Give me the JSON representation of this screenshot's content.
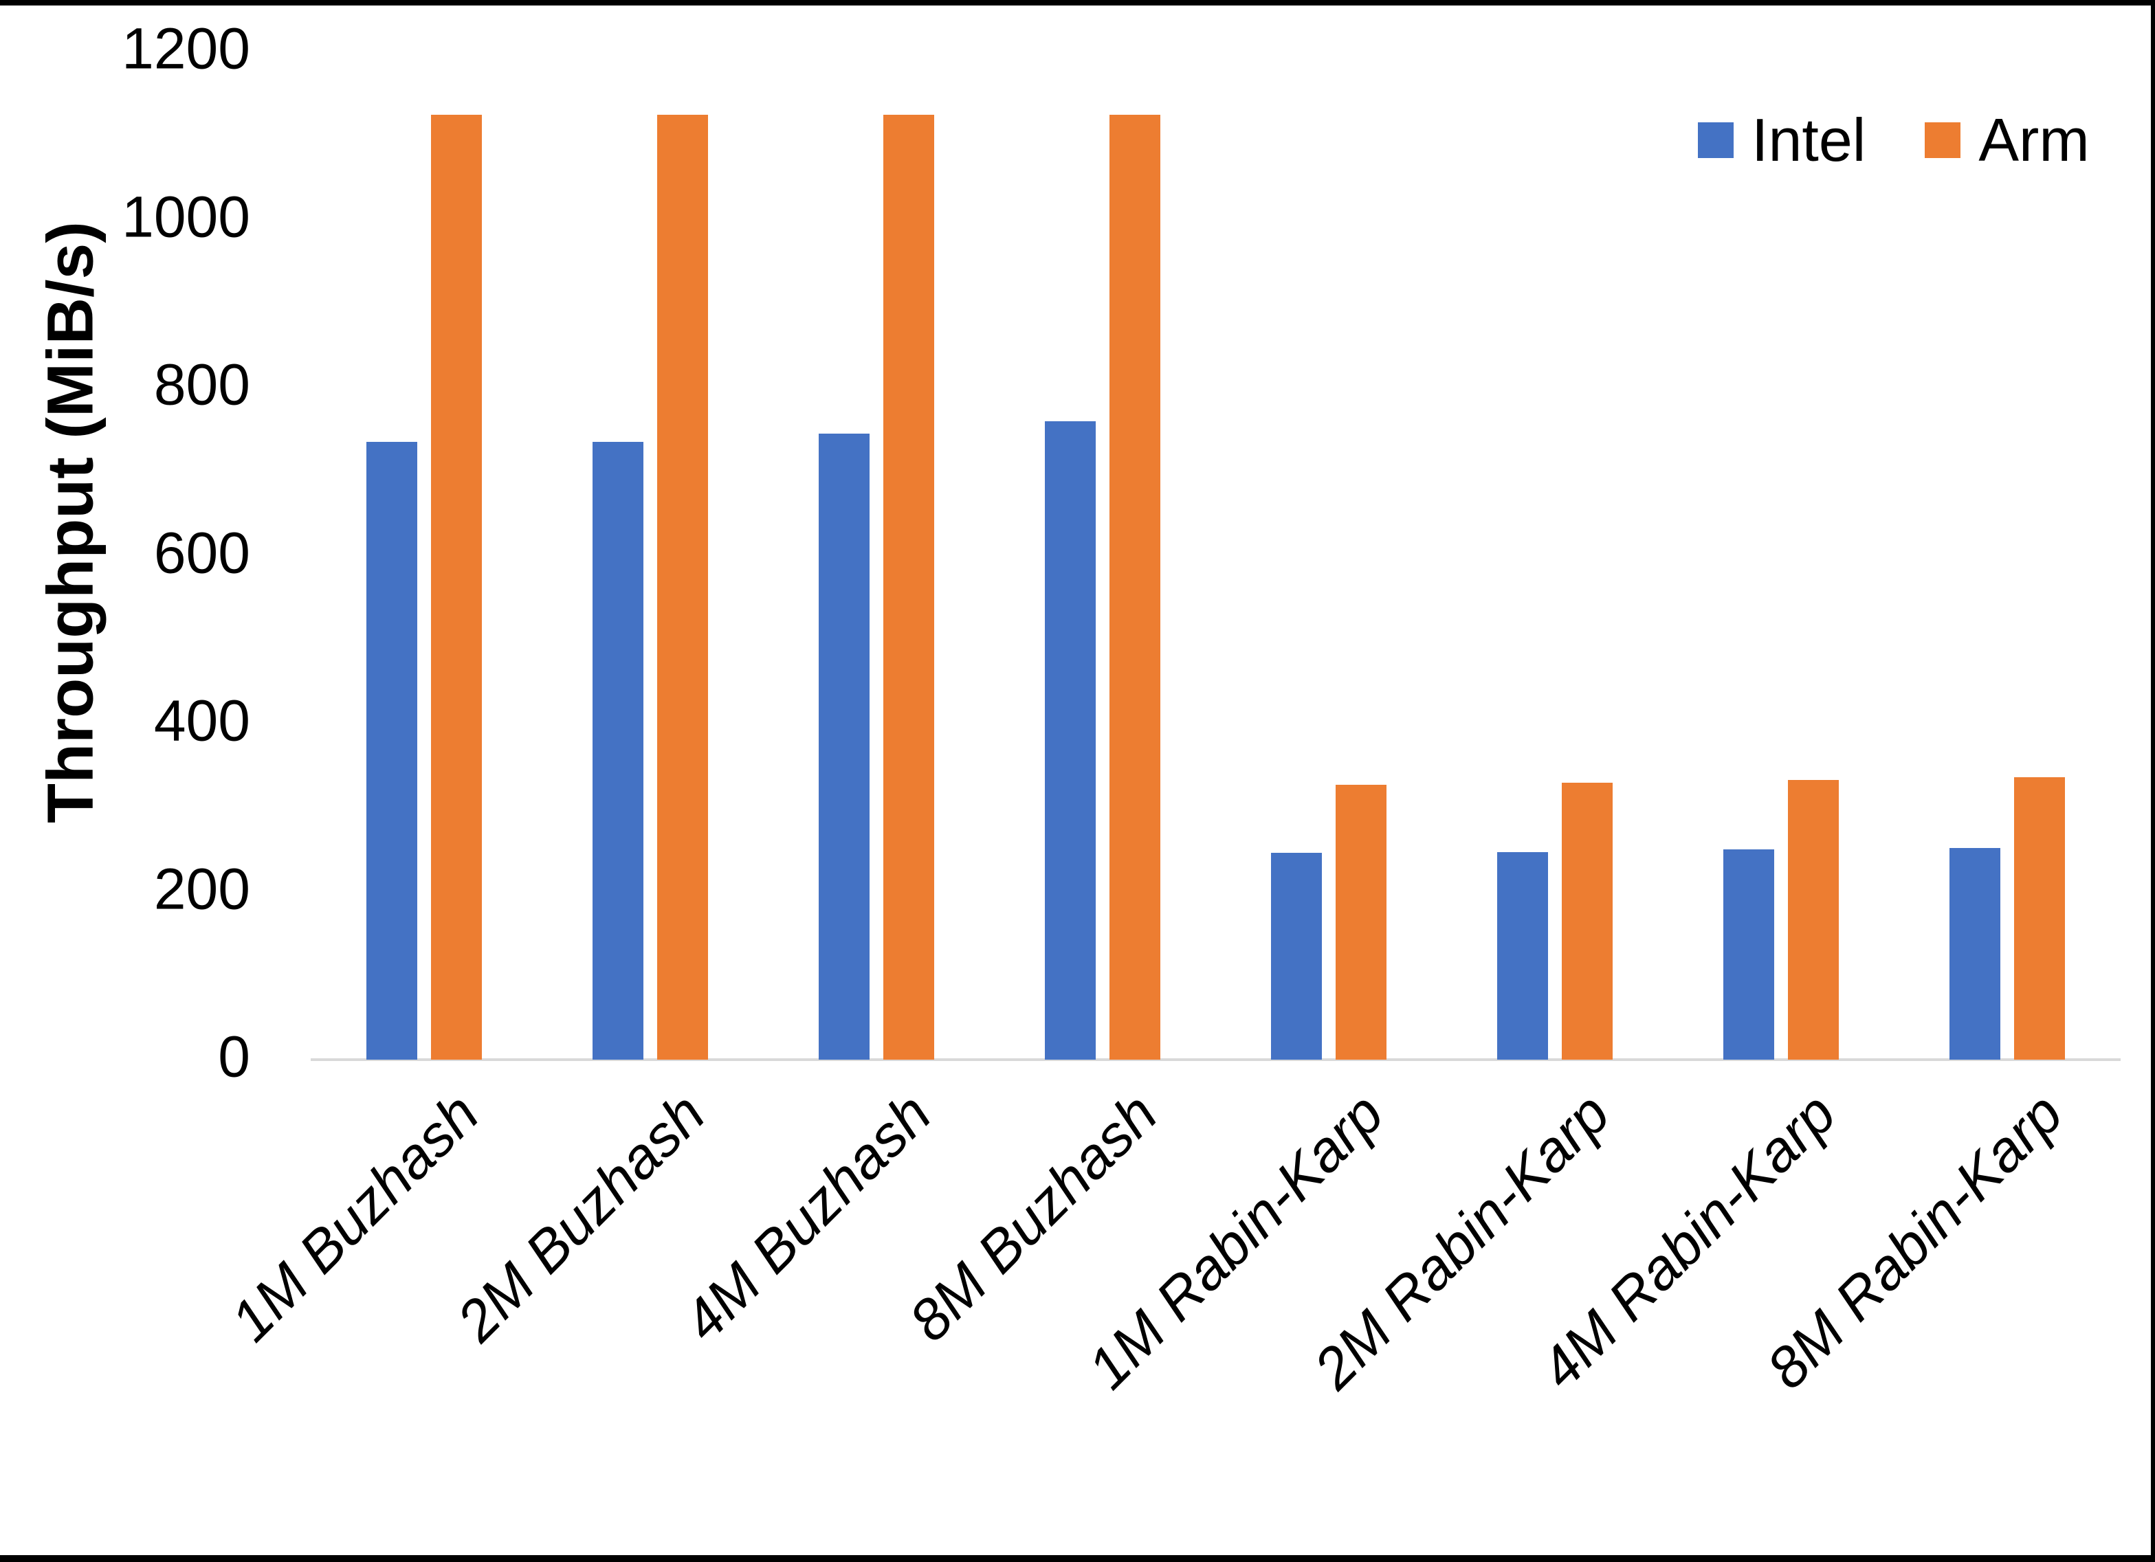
{
  "chart_data": {
    "type": "bar",
    "title": "",
    "xlabel": "",
    "ylabel": "Throughput (MiB/s)",
    "ylim": [
      0,
      1200
    ],
    "yticks": [
      0,
      200,
      400,
      600,
      800,
      1000,
      1200
    ],
    "grid": false,
    "legend_position": "top-right",
    "background": "#ffffff",
    "axis_line_color": "#D9D9D9",
    "categories": [
      "1M Buzhash",
      "2M Buzhash",
      "4M Buzhash",
      "8M Buzhash",
      "1M Rabin-Karp",
      "2M Rabin-Karp",
      "4M Rabin-Karp",
      "8M Rabin-Karp"
    ],
    "series": [
      {
        "name": "Intel",
        "color": "#4472C4",
        "values": [
          735,
          735,
          745,
          760,
          246,
          247,
          250,
          252
        ]
      },
      {
        "name": "Arm",
        "color": "#ED7D31",
        "values": [
          1125,
          1125,
          1125,
          1125,
          327,
          330,
          333,
          336
        ]
      }
    ]
  }
}
